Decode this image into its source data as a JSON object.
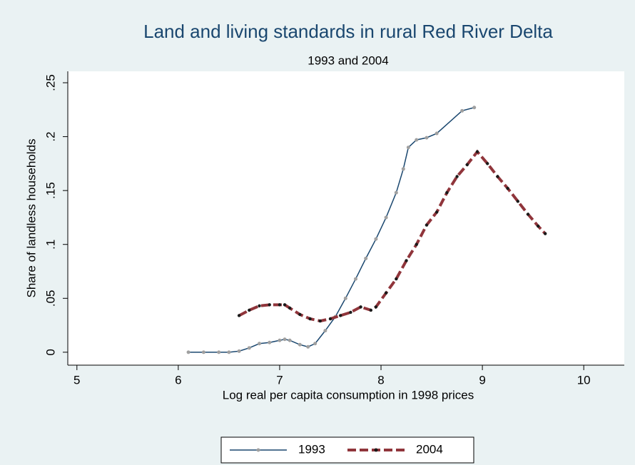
{
  "chart_data": {
    "type": "line",
    "title": "Land and living standards in rural Red River Delta",
    "subtitle": "1993 and 2004",
    "x_label": "Log real per capita consumption in 1998 prices",
    "y_label": "Share of landless households",
    "xlim": [
      4.91,
      10.4
    ],
    "xticks": [
      5,
      6,
      7,
      8,
      9,
      10
    ],
    "ylim": [
      -0.012,
      0.2606
    ],
    "yticks": [
      0,
      {
        "value": 0.05,
        "label": ".05"
      },
      {
        "value": 0.1,
        "label": ".1"
      },
      {
        "value": 0.15,
        "label": ".15"
      },
      {
        "value": 0.2,
        "label": ".2"
      },
      {
        "value": 0.25,
        "label": ".25"
      }
    ],
    "legend": "bottom",
    "series": [
      {
        "name": "1993",
        "color": "#1a476f",
        "marker_color": "#a0a0a0",
        "dashed": false,
        "x": [
          6.1,
          6.25,
          6.4,
          6.5,
          6.6,
          6.7,
          6.8,
          6.9,
          7.0,
          7.05,
          7.1,
          7.2,
          7.28,
          7.35,
          7.45,
          7.55,
          7.65,
          7.75,
          7.85,
          7.95,
          8.05,
          8.15,
          8.22,
          8.27,
          8.35,
          8.45,
          8.55,
          8.8,
          8.92
        ],
        "values": [
          0,
          0,
          0,
          0,
          0.001,
          0.004,
          0.008,
          0.009,
          0.011,
          0.012,
          0.011,
          0.007,
          0.005,
          0.008,
          0.02,
          0.033,
          0.05,
          0.068,
          0.087,
          0.105,
          0.125,
          0.148,
          0.17,
          0.19,
          0.197,
          0.199,
          0.203,
          0.224,
          0.227
        ]
      },
      {
        "name": "2004",
        "color": "#90353b",
        "marker_color": "#1a1a1a",
        "dashed": true,
        "x": [
          6.6,
          6.7,
          6.8,
          6.9,
          7.0,
          7.05,
          7.1,
          7.2,
          7.3,
          7.4,
          7.5,
          7.6,
          7.7,
          7.8,
          7.9,
          7.95,
          8.05,
          8.15,
          8.25,
          8.35,
          8.45,
          8.55,
          8.65,
          8.75,
          8.85,
          8.95,
          9.05,
          9.15,
          9.25,
          9.35,
          9.45,
          9.55,
          9.62
        ],
        "values": [
          0.034,
          0.039,
          0.043,
          0.044,
          0.044,
          0.044,
          0.041,
          0.035,
          0.031,
          0.029,
          0.031,
          0.034,
          0.037,
          0.042,
          0.039,
          0.042,
          0.055,
          0.068,
          0.085,
          0.1,
          0.118,
          0.13,
          0.148,
          0.163,
          0.174,
          0.186,
          0.175,
          0.163,
          0.152,
          0.14,
          0.128,
          0.117,
          0.11
        ]
      }
    ]
  }
}
